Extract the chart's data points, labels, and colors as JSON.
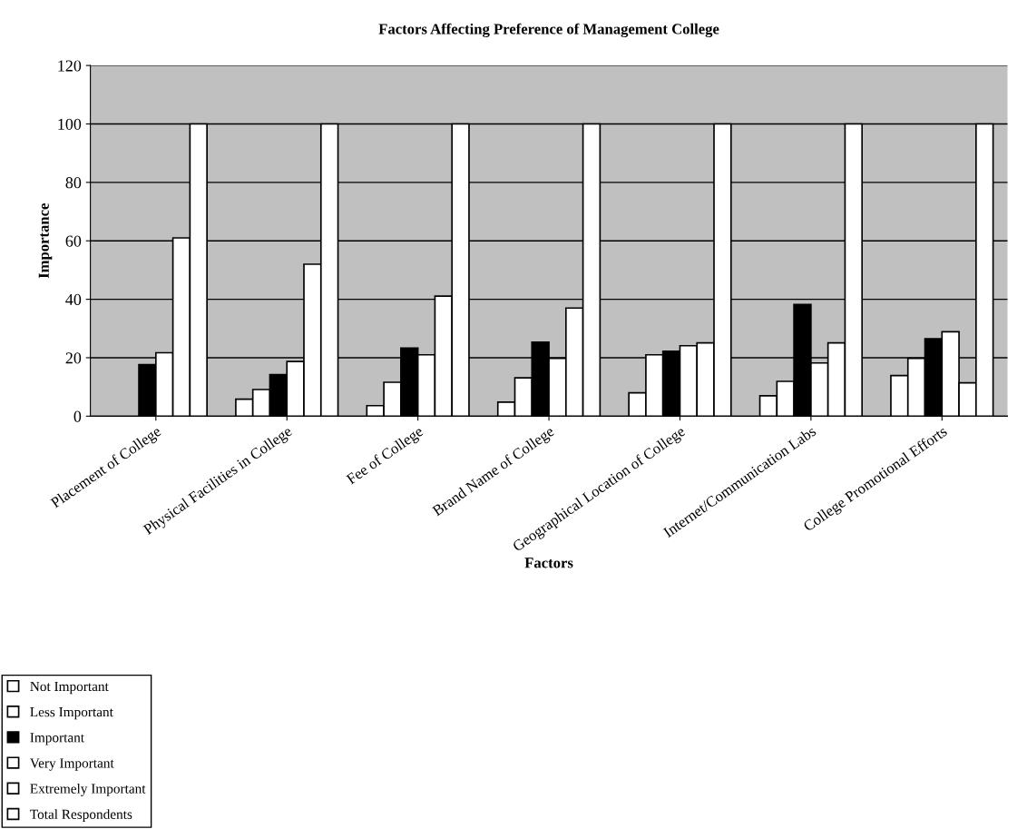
{
  "chart_data": {
    "type": "bar",
    "title": "Factors Affecting Preference of Management College",
    "xlabel": "Factors",
    "ylabel": "Importance",
    "categories": [
      "Placement of College",
      "Physical Facilities in College",
      "Fee of College",
      "Brand Name of College",
      "Geographical Location of College",
      "Internet/Communication Labs",
      "College Promotional Efforts"
    ],
    "series": [
      {
        "name": "Not Important",
        "color": "#ffffff",
        "values": [
          0,
          5.8,
          3.6,
          4.8,
          8,
          7,
          13.9
        ]
      },
      {
        "name": "Less Important",
        "color": "#ffffff",
        "values": [
          0,
          9.1,
          11.6,
          13.1,
          21,
          11.9,
          19.8
        ]
      },
      {
        "name": "Important",
        "color": "#000000",
        "values": [
          17.6,
          14.2,
          23.3,
          25.3,
          22.2,
          38.2,
          26.5
        ]
      },
      {
        "name": "Very Important",
        "color": "#ffffff",
        "values": [
          21.7,
          18.7,
          21,
          19.8,
          24.1,
          18.2,
          28.9
        ]
      },
      {
        "name": "Extremely Important",
        "color": "#ffffff",
        "values": [
          61,
          52,
          41.1,
          37,
          25.1,
          25.1,
          11.4
        ]
      },
      {
        "name": "Total Respondents",
        "color": "#ffffff",
        "values": [
          100,
          100,
          100,
          100,
          100,
          100,
          100
        ]
      }
    ],
    "ylim": [
      0,
      120
    ],
    "yticks": [
      0,
      20,
      40,
      60,
      80,
      100,
      120
    ],
    "grid": "y",
    "legend": "bottom left"
  }
}
